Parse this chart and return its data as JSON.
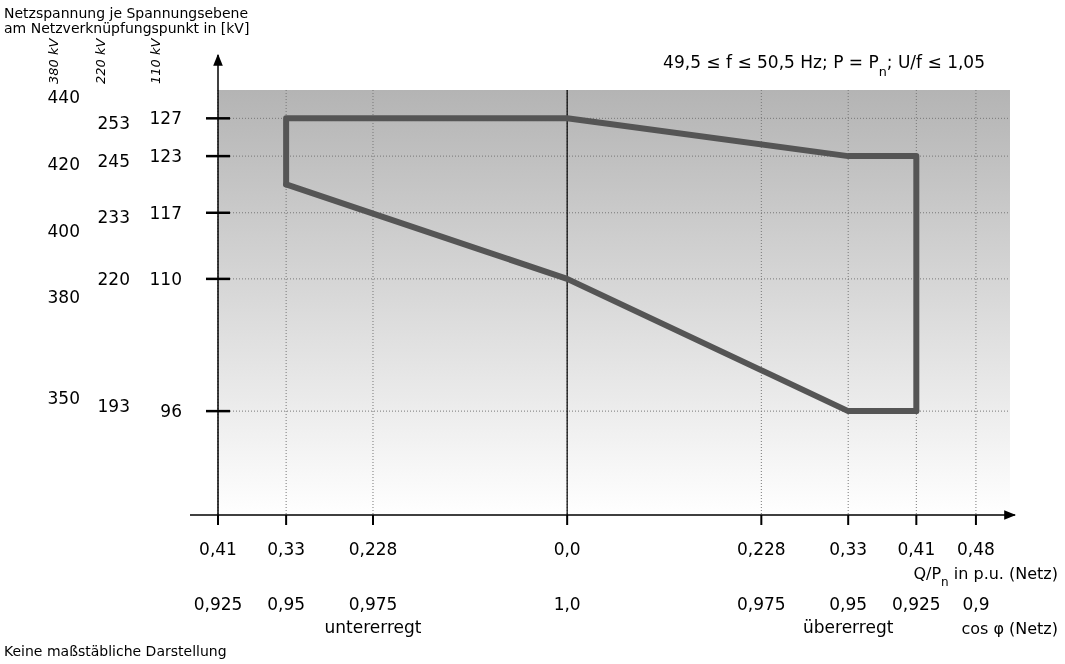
{
  "chart_data": {
    "type": "line",
    "title": "Netzspannung je Spannungsebene am Netzverknüpfungspunkt in [kV]",
    "subtitle": "49,5 ≤ f ≤ 50,5 Hz; P = P$_{n}$; U/f ≤ 1,05",
    "ylabel": "110 kV",
    "y2label": "220 kV",
    "y3label": "380 kV",
    "xlabel": "Q/P$_{n}$ in p.u. (Netz)",
    "annotations": [
      "untererregt",
      "übererregt",
      "Keine maßstäbliche Darstellung",
      "cos φ (Netz)",
      "0,925",
      "0,95",
      "0,975",
      "1,0",
      "0,975",
      "0,95",
      "0,925",
      "0,9"
    ],
    "series": [
      {
        "color": "#555555",
        "x": [
          -0.33,
          -0.33,
          0,
          0.33,
          0.41,
          0.41
        ],
        "values": [
          120,
          127,
          127,
          123,
          123,
          96
        ]
      },
      {
        "color": "#555555",
        "x": [
          -0.33,
          0,
          0.33,
          0.41
        ],
        "values": [
          120,
          110,
          96,
          96
        ]
      }
    ],
    "xlim": [
      -0.41,
      0.52
    ],
    "xticks": [
      {
        "value": -0.41,
        "label": "0,41"
      },
      {
        "value": -0.33,
        "label": "0,33"
      },
      {
        "value": -0.228,
        "label": "0,228"
      },
      {
        "value": 0,
        "label": "0,0"
      },
      {
        "value": 0.228,
        "label": "0,228"
      },
      {
        "value": 0.33,
        "label": "0,33"
      },
      {
        "value": 0.41,
        "label": "0,41"
      },
      {
        "value": 0.48,
        "label": "0,48"
      }
    ],
    "ylim": [
      85,
      130
    ],
    "yticks": [
      96,
      110,
      117,
      123,
      127
    ],
    "y2lim": [
      170,
      260
    ],
    "y2ticks": [
      193,
      220,
      233,
      245,
      253
    ],
    "y3lim": [
      315,
      442
    ],
    "y3ticks": [
      350,
      380,
      400,
      420,
      440
    ],
    "grid": true,
    "ref_lines": [
      {
        "axis": "x",
        "value": 0,
        "color": "#000000"
      }
    ]
  }
}
